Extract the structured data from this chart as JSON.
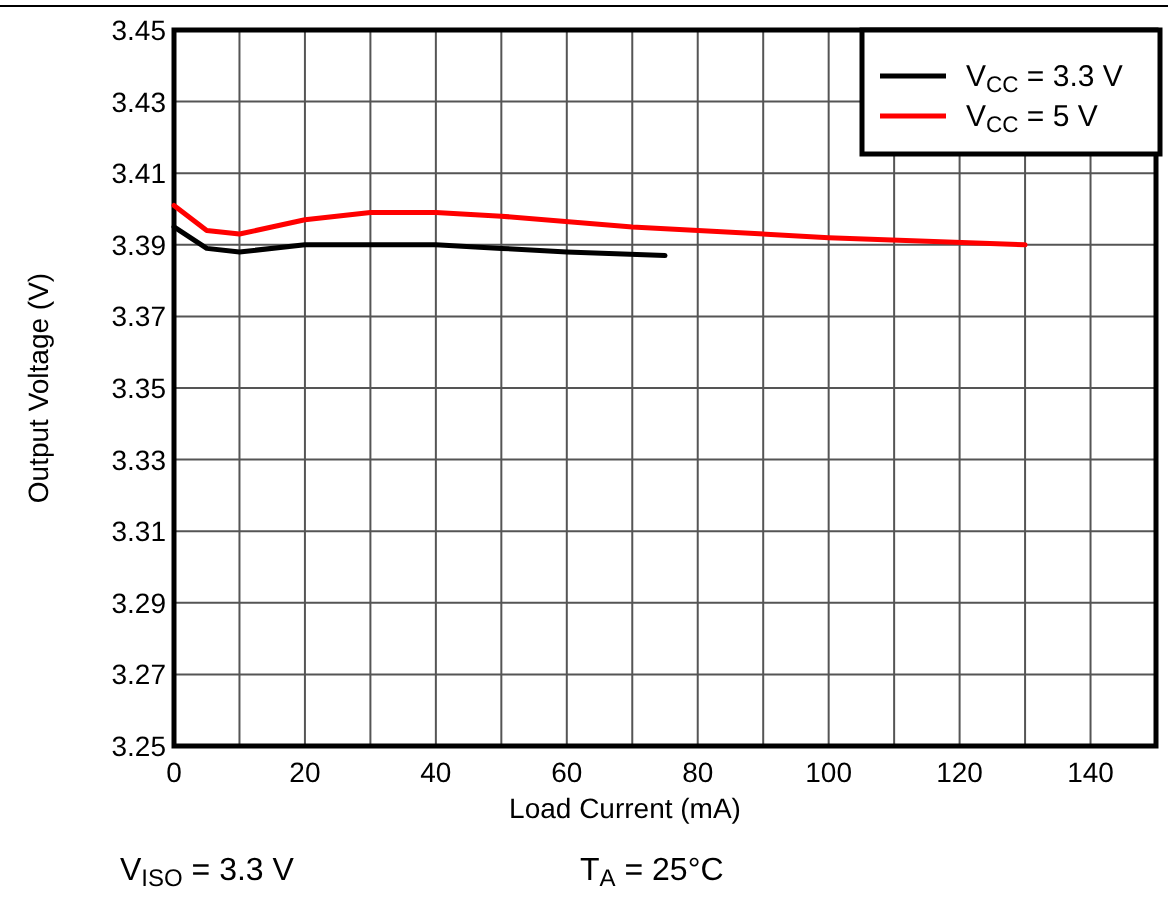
{
  "chart_data": {
    "type": "line",
    "xlabel": "Load Current (mA)",
    "ylabel": "Output Voltage (V)",
    "xlim": [
      0,
      150
    ],
    "ylim": [
      3.25,
      3.45
    ],
    "xticks": [
      0,
      {
        "value": 10,
        "label": null
      },
      20,
      {
        "value": 30,
        "label": null
      },
      40,
      {
        "value": 50,
        "label": null
      },
      60,
      {
        "value": 70,
        "label": null
      },
      80,
      {
        "value": 90,
        "label": null
      },
      100,
      {
        "value": 110,
        "label": null
      },
      120,
      {
        "value": 130,
        "label": null
      },
      140,
      {
        "value": 150,
        "label": null
      }
    ],
    "yticks": [
      3.25,
      3.27,
      3.29,
      3.31,
      3.33,
      3.35,
      3.37,
      3.39,
      3.41,
      3.43,
      3.45
    ],
    "grid": true,
    "legend": "top right",
    "series": [
      {
        "name": "V$_{CC}$ = 3.3 V",
        "color": "#000000",
        "x": [
          0,
          5,
          10,
          20,
          30,
          40,
          50,
          60,
          75
        ],
        "values": [
          3.395,
          3.389,
          3.388,
          3.39,
          3.39,
          3.39,
          3.389,
          3.388,
          3.387
        ]
      },
      {
        "name": "V$_{CC}$ = 5 V",
        "color": "#ff0000",
        "x": [
          0,
          5,
          10,
          20,
          30,
          40,
          50,
          70,
          100,
          130
        ],
        "values": [
          3.401,
          3.394,
          3.393,
          3.397,
          3.399,
          3.399,
          3.398,
          3.395,
          3.392,
          3.39
        ]
      }
    ],
    "annotations": [
      "V$_{ISO}$ = 3.3 V",
      "T$_{A}$ = 25°C"
    ]
  }
}
